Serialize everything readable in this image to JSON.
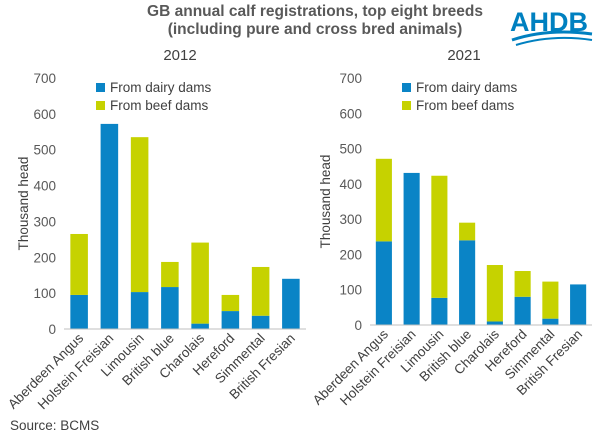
{
  "header": {
    "title_line1": "GB annual calf registrations, top eight breeds",
    "title_line2": "(including pure and cross bred animals)"
  },
  "logo": {
    "text": "AHDB",
    "color": "#0080c0"
  },
  "source": "Source: BCMS",
  "colors": {
    "dairy": "#0a84c6",
    "beef": "#c6d200",
    "axis": "#bfbfbf"
  },
  "chart_data": [
    {
      "type": "bar",
      "stacked": true,
      "title": "2012",
      "ylabel": "Thousand head",
      "ylim": [
        0,
        700
      ],
      "yticks": [
        0,
        100,
        200,
        300,
        400,
        500,
        600,
        700
      ],
      "legend_position": "top-left",
      "categories": [
        "Aberdeen Angus",
        "Holstein Freisian",
        "Limousin",
        "British blue",
        "Charolais",
        "Hereford",
        "Simmental",
        "British Fresian"
      ],
      "series": [
        {
          "name": "From dairy dams",
          "values": [
            95,
            572,
            103,
            117,
            15,
            50,
            37,
            140
          ]
        },
        {
          "name": "From beef dams",
          "values": [
            170,
            0,
            432,
            70,
            226,
            45,
            136,
            0
          ]
        }
      ]
    },
    {
      "type": "bar",
      "stacked": true,
      "title": "2021",
      "ylabel": "Thousand head",
      "ylim": [
        0,
        700
      ],
      "yticks": [
        0,
        100,
        200,
        300,
        400,
        500,
        600,
        700
      ],
      "legend_position": "top-left",
      "categories": [
        "Aberdeen Angus",
        "Holstein Freisian",
        "Limousin",
        "British blue",
        "Charolais",
        "Hereford",
        "Simmental",
        "British Fresian"
      ],
      "series": [
        {
          "name": "From dairy dams",
          "values": [
            237,
            431,
            77,
            240,
            10,
            80,
            18,
            115
          ]
        },
        {
          "name": "From beef dams",
          "values": [
            234,
            0,
            346,
            50,
            160,
            73,
            105,
            0
          ]
        }
      ]
    }
  ]
}
